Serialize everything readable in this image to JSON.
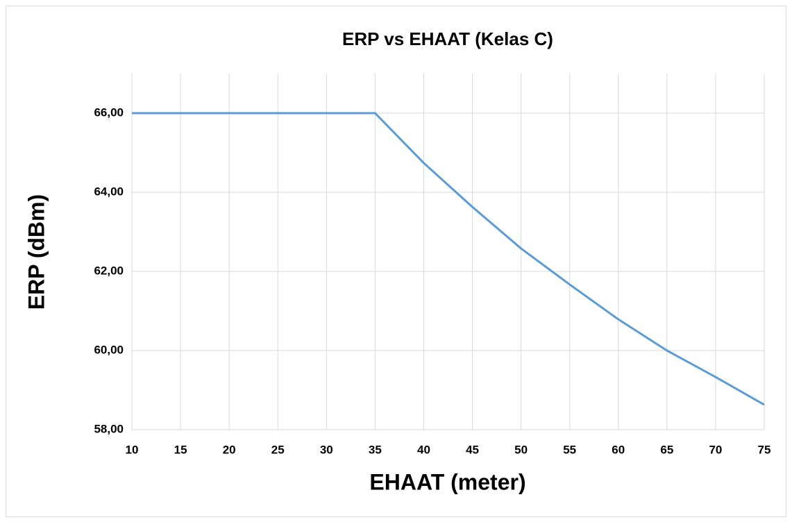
{
  "chart_data": {
    "type": "line",
    "title": "ERP vs EHAAT (Kelas C)",
    "x_label": "EHAAT (meter)",
    "y_label": "ERP (dBm)",
    "x": [
      10,
      15,
      20,
      25,
      30,
      35,
      40,
      45,
      50,
      55,
      60,
      65,
      70,
      75
    ],
    "series": [
      {
        "name": "ERP",
        "color": "#5b9bd5",
        "values": [
          66,
          66,
          66,
          66,
          66,
          66,
          64.74,
          63.63,
          62.58,
          61.67,
          60.79,
          60.0,
          59.33,
          58.63
        ]
      }
    ],
    "xlim": [
      10,
      75
    ],
    "xticks": [
      10,
      15,
      20,
      25,
      30,
      35,
      40,
      45,
      50,
      55,
      60,
      65,
      70,
      75
    ],
    "ylim": [
      58,
      67
    ],
    "yticks": [
      {
        "value": 58,
        "label": "58,00"
      },
      {
        "value": 60,
        "label": "60,00"
      },
      {
        "value": 62,
        "label": "62,00"
      },
      {
        "value": 64,
        "label": "64,00"
      },
      {
        "value": 66,
        "label": "66,00"
      }
    ],
    "grid": true
  }
}
